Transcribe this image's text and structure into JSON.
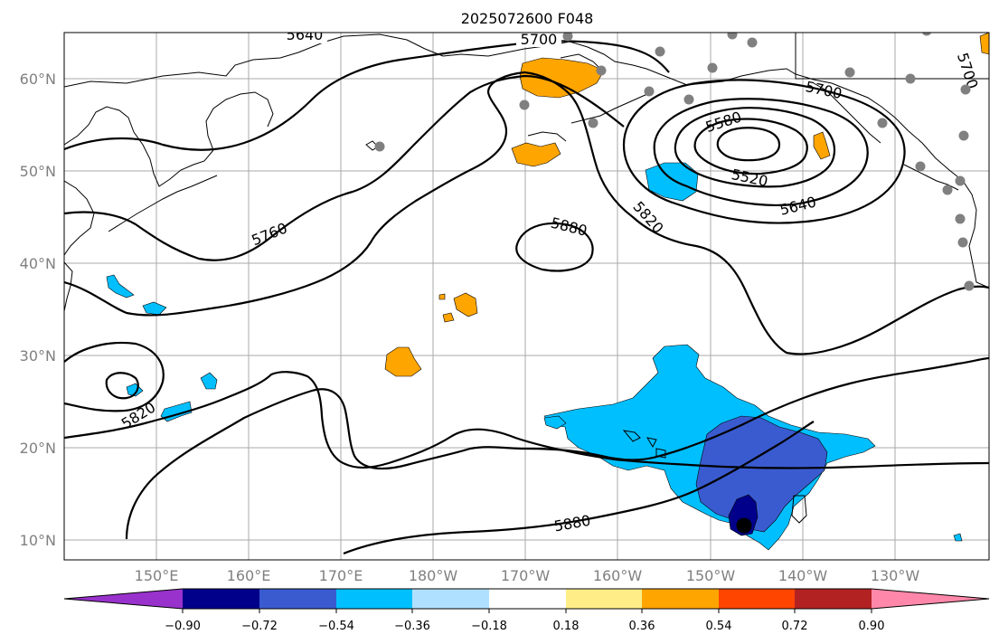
{
  "title": "2025072600 F048",
  "colors": {
    "neg_090": "#9932cc",
    "neg_072": "#00008b",
    "neg_054": "#3a5bd0",
    "neg_036": "#00bfff",
    "neg_018": "#b0e0ff",
    "neutral": "#ffffff",
    "pos_018": "#ffee88",
    "pos_036": "#ffa500",
    "pos_054": "#ff4500",
    "pos_072": "#b22222",
    "pos_090": "#ff88aa",
    "station": "#808080",
    "storm": "#000000"
  },
  "axes": {
    "lat_labels": [
      "60°N",
      "50°N",
      "40°N",
      "30°N",
      "20°N",
      "10°N"
    ],
    "lon_labels": [
      "150°E",
      "160°E",
      "170°E",
      "180°W",
      "170°W",
      "160°W",
      "150°W",
      "140°W",
      "130°W"
    ]
  },
  "contour_labels": {
    "c5640_top": "5640",
    "c5700_top": "5700",
    "c5700_right": "5700",
    "c5700_ak": "5700",
    "c5580": "5580",
    "c5520": "5520",
    "c5640_low": "5640",
    "c5820_mid": "5820",
    "c5880_high": "5880",
    "c5760": "5760",
    "c5820_west": "5820",
    "c5880_south": "5880"
  },
  "colorbar": {
    "ticks": [
      "−0.90",
      "−0.72",
      "−0.54",
      "−0.36",
      "−0.18",
      "0.18",
      "0.36",
      "0.54",
      "0.72",
      "0.90"
    ]
  }
}
